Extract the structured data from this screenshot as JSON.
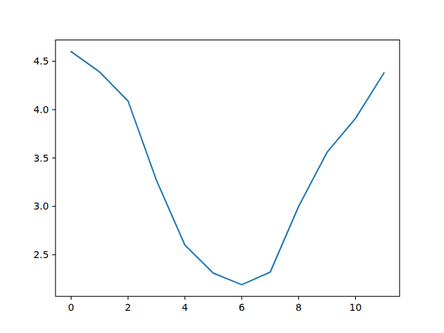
{
  "chart_data": {
    "type": "line",
    "color": "#1f77b4",
    "grid": false,
    "x": [
      0,
      1,
      2,
      3,
      4,
      5,
      6,
      7,
      8,
      9,
      10,
      11
    ],
    "values": [
      4.6,
      4.39,
      4.09,
      3.27,
      2.6,
      2.31,
      2.19,
      2.32,
      3.0,
      3.56,
      3.91,
      4.38
    ],
    "xlim": [
      -0.55,
      11.55
    ],
    "xticks": [
      0,
      2,
      4,
      6,
      8,
      10
    ],
    "ylim": [
      2.0695,
      4.7205
    ],
    "yticks": [
      2.5,
      {
        "value": 3,
        "label": "3.0"
      },
      3.5,
      {
        "value": 4,
        "label": "4.0"
      },
      4.5
    ]
  }
}
